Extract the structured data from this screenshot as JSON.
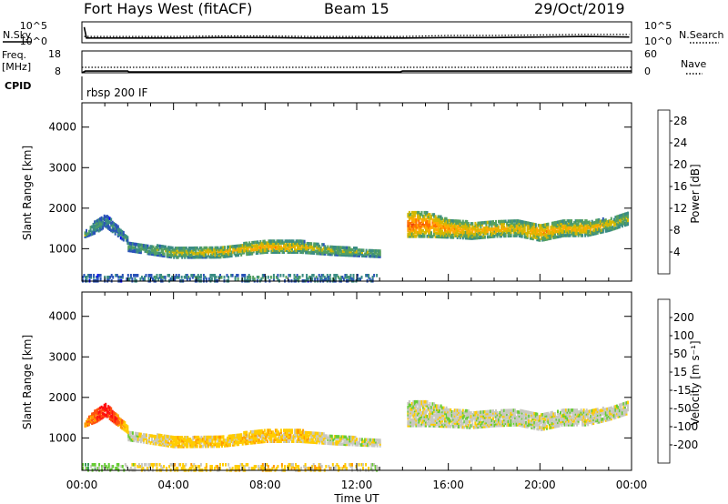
{
  "header": {
    "title": "Fort Hays West (fitACF)",
    "beam": "Beam 15",
    "date": "29/Oct/2019"
  },
  "chart_data": [
    {
      "type": "line",
      "panel": "noise",
      "ylabel_left": "N.Sky",
      "ylabel_right": "N.Search",
      "yticks_left": [
        "10^5",
        "10^0"
      ],
      "yticks_right": [
        "10^5",
        "10^0"
      ],
      "x_range_hours": [
        0,
        24
      ],
      "series": [
        {
          "style": "solid",
          "x": [
            0.1,
            0.2,
            2,
            4,
            6,
            8,
            10,
            12,
            14,
            16,
            18,
            20,
            22,
            23.9
          ],
          "y": [
            1.5,
            0.45,
            0.45,
            0.45,
            0.5,
            0.5,
            0.45,
            0.45,
            0.45,
            0.5,
            0.5,
            0.55,
            0.6,
            0.55
          ]
        },
        {
          "style": "dotted",
          "x": [
            0.1,
            2,
            4,
            6,
            8,
            10,
            12,
            14,
            16,
            18,
            20,
            22,
            23.9
          ],
          "y": [
            0.6,
            0.6,
            0.6,
            0.65,
            0.65,
            0.6,
            0.6,
            0.6,
            0.7,
            0.7,
            0.75,
            0.8,
            0.8
          ]
        }
      ]
    },
    {
      "type": "line",
      "panel": "frequency",
      "ylabel_left": "Freq. [MHz]",
      "ylabel_right": "Nave",
      "yticks_left": [
        "18",
        "8"
      ],
      "yticks_right": [
        "60",
        "0"
      ],
      "x_range_hours": [
        0,
        24
      ],
      "freq_ylim": [
        8,
        18
      ],
      "freq_mhz": {
        "x": [
          0,
          0.15,
          2,
          2.05,
          13.9,
          14.0,
          24
        ],
        "y": [
          8,
          8.8,
          8.8,
          8.4,
          8.4,
          8.8,
          8.8
        ]
      },
      "nave": {
        "x": [
          0,
          24
        ],
        "y": [
          15,
          15
        ]
      }
    },
    {
      "type": "table",
      "panel": "cpid",
      "label": "CPID",
      "entries": [
        {
          "start_hour": 0,
          "text": "rbsp 200 IF"
        }
      ]
    },
    {
      "type": "heatmap",
      "panel": "power",
      "ylabel": "Slant Range [km]",
      "yticks": [
        1000,
        2000,
        3000,
        4000
      ],
      "ylim": [
        200,
        4600
      ],
      "xlim": [
        0,
        24
      ],
      "colorbar": {
        "label": "Power [dB]",
        "ticks": [
          4,
          8,
          12,
          16,
          20,
          24,
          28
        ],
        "range": [
          0,
          30
        ],
        "colors": [
          "#0000ff",
          "#2a53b8",
          "#3a8c84",
          "#55a060",
          "#d4b800",
          "#ffaa00",
          "#ff7000",
          "#e84010",
          "#ff0000"
        ]
      },
      "echo_bands": [
        {
          "x": [
            0.1,
            0.6,
            1.0,
            1.5,
            2.0
          ],
          "center": [
            1350,
            1550,
            1700,
            1450,
            1200
          ],
          "halfwidth": [
            60,
            150,
            150,
            120,
            80
          ],
          "level": [
            12,
            10,
            8,
            8,
            8
          ]
        },
        {
          "x": [
            2.0,
            4.0,
            6.0,
            8.0,
            9.5,
            11.0,
            13.0
          ],
          "center": [
            1050,
            900,
            920,
            1050,
            1050,
            950,
            880
          ],
          "halfwidth": [
            100,
            120,
            130,
            140,
            140,
            100,
            80
          ],
          "level": [
            10,
            14,
            17,
            19,
            17,
            14,
            12
          ]
        },
        {
          "x": [
            14.2,
            15.0,
            16.0,
            17.0,
            18.0,
            19.0,
            20.0,
            21.0,
            22.0,
            23.0,
            23.8
          ],
          "center": [
            1600,
            1600,
            1500,
            1450,
            1500,
            1500,
            1400,
            1500,
            1500,
            1600,
            1750
          ],
          "halfwidth": [
            300,
            300,
            220,
            200,
            200,
            180,
            200,
            180,
            180,
            150,
            150
          ],
          "level": [
            24,
            22,
            20,
            18,
            18,
            17,
            20,
            18,
            18,
            16,
            14
          ]
        },
        {
          "x": [
            0.0,
            4.0,
            8.0,
            12.0,
            13.0
          ],
          "center": [
            280,
            280,
            280,
            280,
            280
          ],
          "halfwidth": [
            80,
            80,
            80,
            80,
            80
          ],
          "level": [
            6,
            8,
            10,
            8,
            6
          ]
        }
      ]
    },
    {
      "type": "heatmap",
      "panel": "velocity",
      "ylabel": "Slant Range [km]",
      "yticks": [
        1000,
        2000,
        3000,
        4000
      ],
      "ylim": [
        200,
        4600
      ],
      "xlim": [
        0,
        24
      ],
      "xlabel": "Time UT",
      "xticks": [
        "00:00",
        "04:00",
        "08:00",
        "12:00",
        "16:00",
        "20:00",
        "00:00"
      ],
      "colorbar": {
        "label": "Velocity [m s⁻¹]",
        "ticks": [
          "200",
          "100",
          "50",
          "15",
          "-15",
          "-50",
          "-100",
          "-200"
        ],
        "colors": [
          "#1a3fb0",
          "#1a6aa8",
          "#3a9a5a",
          "#66cc33",
          "#c8c8c0",
          "#ffcc00",
          "#ff9a00",
          "#ff5010",
          "#ff1010"
        ]
      },
      "echo_bands": [
        {
          "x": [
            0.1,
            0.6,
            1.0,
            1.5,
            2.0
          ],
          "center": [
            1350,
            1550,
            1700,
            1450,
            1200
          ],
          "halfwidth": [
            60,
            150,
            150,
            120,
            80
          ],
          "level": [
            6,
            7,
            8,
            7,
            5
          ]
        },
        {
          "x": [
            2.0,
            4.0,
            6.0,
            8.0,
            9.5,
            11.0,
            13.0
          ],
          "center": [
            1050,
            900,
            920,
            1050,
            1050,
            950,
            880
          ],
          "halfwidth": [
            100,
            120,
            130,
            140,
            140,
            100,
            80
          ],
          "level": [
            4,
            5,
            5,
            5,
            5,
            4,
            4
          ]
        },
        {
          "x": [
            14.2,
            15.0,
            16.0,
            17.0,
            18.0,
            19.0,
            20.0,
            21.0,
            22.0,
            23.0,
            23.8
          ],
          "center": [
            1600,
            1600,
            1500,
            1450,
            1500,
            1500,
            1400,
            1500,
            1500,
            1600,
            1750
          ],
          "halfwidth": [
            300,
            300,
            220,
            200,
            200,
            180,
            200,
            180,
            180,
            150,
            150
          ],
          "level": [
            4,
            4,
            4,
            4,
            4,
            4,
            4,
            4,
            4,
            4,
            4
          ]
        },
        {
          "x": [
            0.0,
            4.0,
            8.0,
            12.0,
            13.0
          ],
          "center": [
            280,
            280,
            280,
            280,
            280
          ],
          "halfwidth": [
            80,
            80,
            80,
            80,
            80
          ],
          "level": [
            3,
            5,
            5,
            5,
            3
          ]
        }
      ]
    }
  ]
}
